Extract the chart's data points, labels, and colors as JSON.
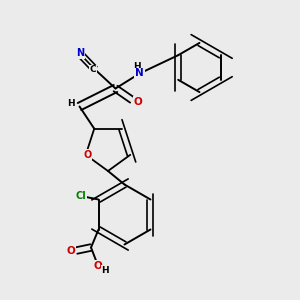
{
  "background_color": "#ebebeb",
  "bond_color": "#000000",
  "atom_colors": {
    "N": "#0000cc",
    "O": "#cc0000",
    "Cl": "#008000",
    "C": "#000000",
    "H": "#000000"
  },
  "figsize": [
    3.0,
    3.0
  ],
  "dpi": 100
}
